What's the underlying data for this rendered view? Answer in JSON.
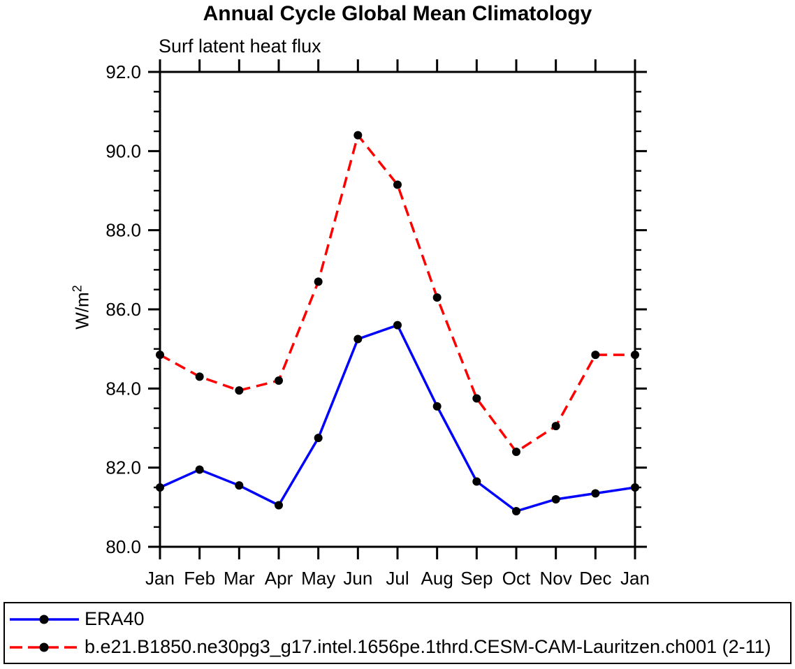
{
  "chart_data": {
    "type": "line",
    "title": "Annual Cycle Global Mean Climatology",
    "subtitle": "Surf latent heat flux",
    "ylabel": {
      "base": "W/m",
      "exponent": "2"
    },
    "categories": [
      "Jan",
      "Feb",
      "Mar",
      "Apr",
      "May",
      "Jun",
      "Jul",
      "Aug",
      "Sep",
      "Oct",
      "Nov",
      "Dec",
      "Jan"
    ],
    "ylim": [
      80.0,
      92.0
    ],
    "y_tick_labels": [
      "80.0",
      "82.0",
      "84.0",
      "86.0",
      "88.0",
      "90.0",
      "92.0"
    ],
    "y_major_ticks": [
      80.0,
      82.0,
      84.0,
      86.0,
      88.0,
      90.0,
      92.0
    ],
    "y_minor_step": 0.5,
    "grid": false,
    "legend_position": "bottom",
    "axis_color": "#000000",
    "background_color": "#FFFFFF",
    "series": [
      {
        "name": "ERA40",
        "color": "#0000FF",
        "line_style": "solid",
        "marker": "filled-circle",
        "marker_color": "#000000",
        "values": [
          81.5,
          81.95,
          81.55,
          81.05,
          82.75,
          85.25,
          85.6,
          83.55,
          81.65,
          80.9,
          81.2,
          81.35,
          81.5
        ]
      },
      {
        "name": "b.e21.B1850.ne30pg3_g17.intel.1656pe.1thrd.CESM-CAM-Lauritzen.ch001 (2-11)",
        "color": "#FF0000",
        "line_style": "dashed",
        "marker": "filled-circle",
        "marker_color": "#000000",
        "values": [
          84.85,
          84.3,
          83.95,
          84.2,
          86.7,
          90.4,
          89.15,
          86.3,
          83.75,
          82.4,
          83.05,
          84.85,
          84.85
        ]
      }
    ]
  }
}
